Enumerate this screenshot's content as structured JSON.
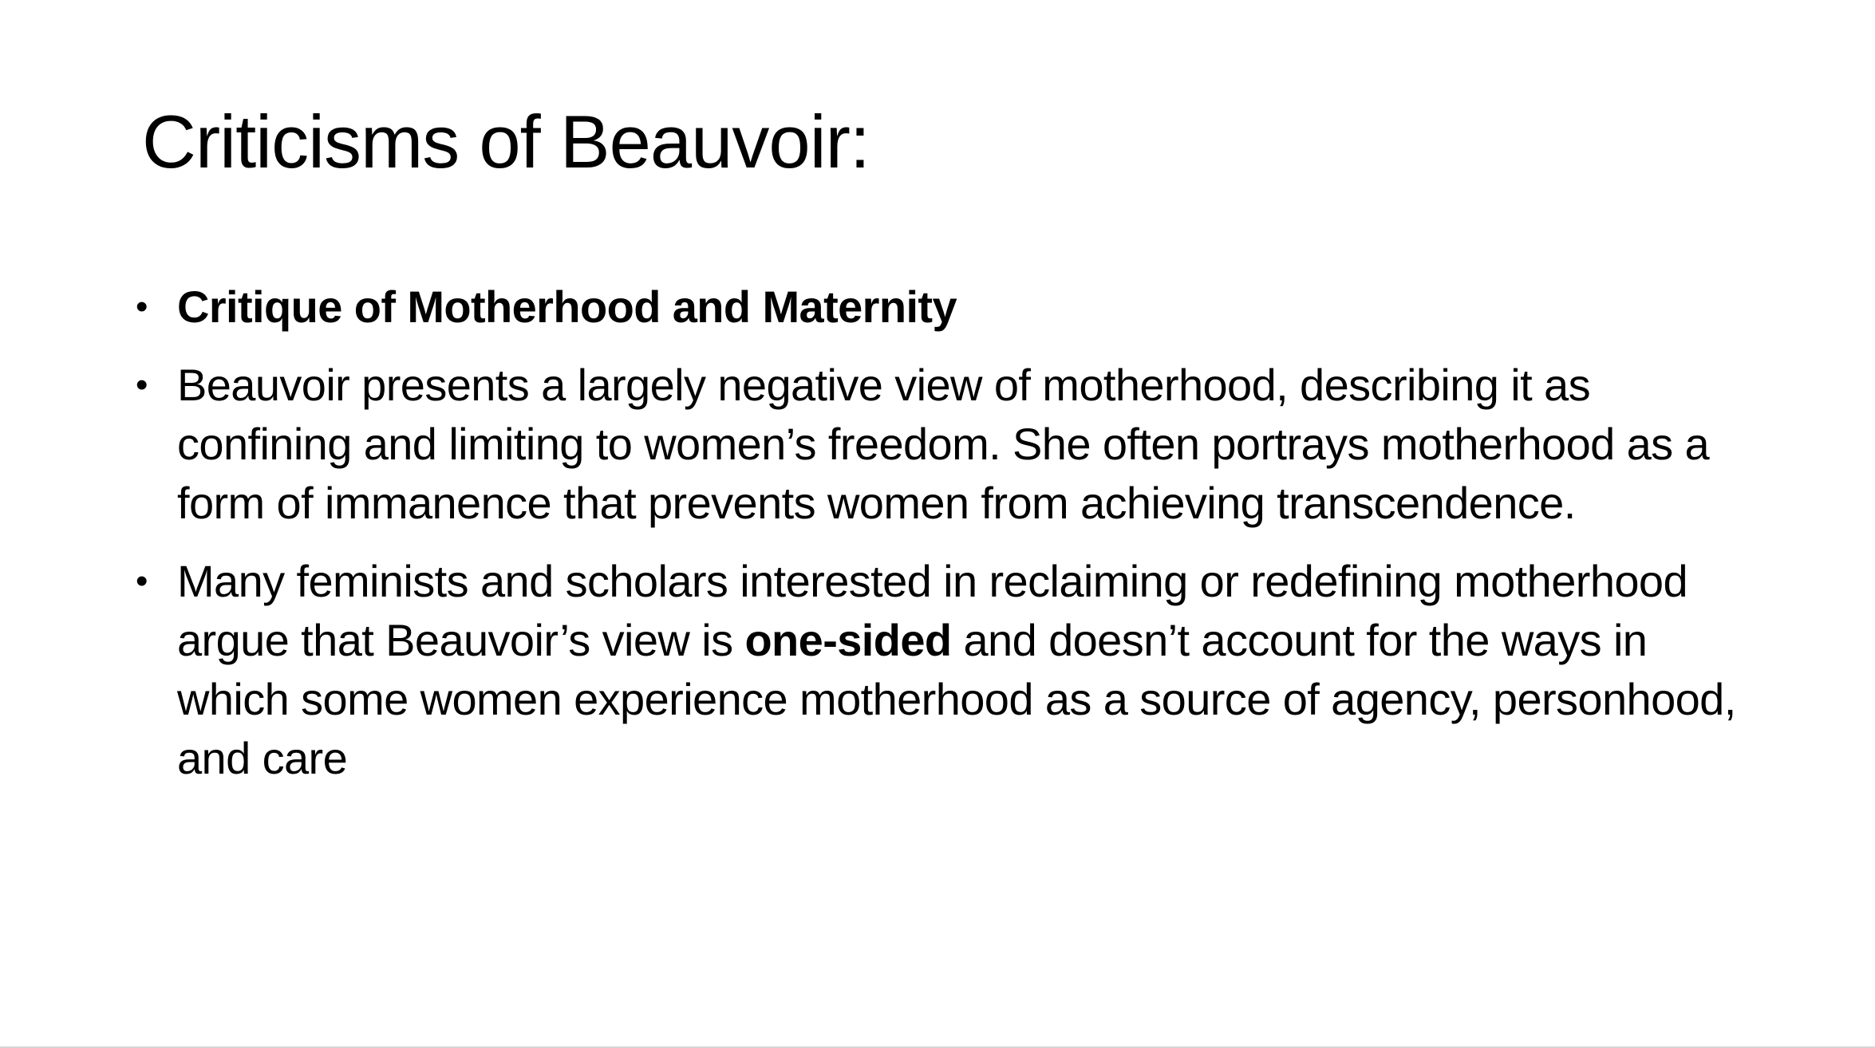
{
  "slide": {
    "title": "Criticisms of Beauvoir:",
    "bullet_glyph": "•",
    "bullets": [
      {
        "text": "Critique of Motherhood and Maternity"
      },
      {
        "text": "Beauvoir presents a largely negative view of motherhood, describing it as confining and limiting to women’s freedom. She often portrays motherhood as a form of immanence that prevents women from achieving transcendence."
      },
      {
        "before": "Many feminists and scholars interested in reclaiming or redefining motherhood argue that Beauvoir’s view is ",
        "emphasis": "one-sided",
        "after": " and doesn’t account for the ways in which some women experience motherhood as a source of agency, personhood, and care"
      }
    ]
  }
}
